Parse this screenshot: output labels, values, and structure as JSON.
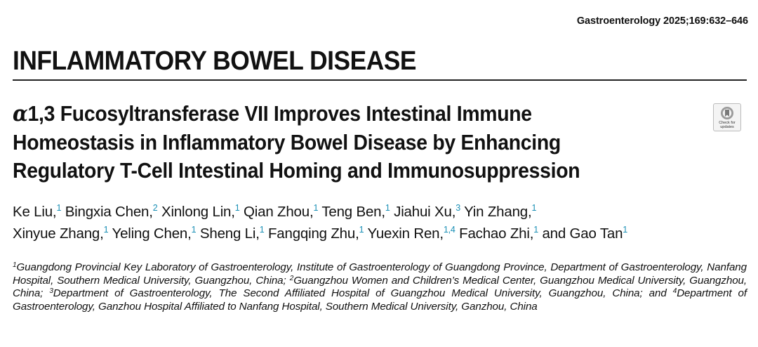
{
  "journal_citation": "Gastroenterology 2025;169:632–646",
  "section_heading": "INFLAMMATORY BOWEL DISEASE",
  "title": {
    "alpha_symbol": "α",
    "line1_rest": "1,3 Fucosyltransferase VII Improves Intestinal Immune",
    "line2": "Homeostasis in Inflammatory Bowel Disease by Enhancing",
    "line3": "Regulatory T-Cell Intestinal Homing and Immunosuppression"
  },
  "badge": {
    "icon": "check-for-updates-icon",
    "line1": "Check for",
    "line2": "updates"
  },
  "authors": {
    "line1": [
      {
        "name": "Ke Liu,",
        "sup": "1"
      },
      {
        "name": "Bingxia Chen,",
        "sup": "2"
      },
      {
        "name": "Xinlong Lin,",
        "sup": "1"
      },
      {
        "name": "Qian Zhou,",
        "sup": "1"
      },
      {
        "name": "Teng Ben,",
        "sup": "1"
      },
      {
        "name": "Jiahui Xu,",
        "sup": "3"
      },
      {
        "name": "Yin Zhang,",
        "sup": "1"
      }
    ],
    "line2": [
      {
        "name": "Xinyue Zhang,",
        "sup": "1"
      },
      {
        "name": "Yeling Chen,",
        "sup": "1"
      },
      {
        "name": "Sheng Li,",
        "sup": "1"
      },
      {
        "name": "Fangqing Zhu,",
        "sup": "1"
      },
      {
        "name": "Yuexin Ren,",
        "sup": "1,4"
      },
      {
        "name": "Fachao Zhi,",
        "sup": "1"
      },
      {
        "name": "and Gao Tan",
        "sup": "1"
      }
    ]
  },
  "affiliations": [
    {
      "sup": "1",
      "text": "Guangdong Provincial Key Laboratory of Gastroenterology, Institute of Gastroenterology of Guangdong Province, Department of Gastroenterology, Nanfang Hospital, Southern Medical University, Guangzhou, China; "
    },
    {
      "sup": "2",
      "text": "Guangzhou Women and Children’s Medical Center, Guangzhou Medical University, Guangzhou, China; "
    },
    {
      "sup": "3",
      "text": "Department of Gastroenterology, The Second Affiliated Hospital of Guangzhou Medical University, Guangzhou, China; and "
    },
    {
      "sup": "4",
      "text": "Department of Gastroenterology, Ganzhou Hospital Affiliated to Nanfang Hospital, Southern Medical University, Ganzhou, China"
    }
  ],
  "colors": {
    "superscript": "#1a8fb5",
    "text": "#111111",
    "rule": "#222222"
  }
}
